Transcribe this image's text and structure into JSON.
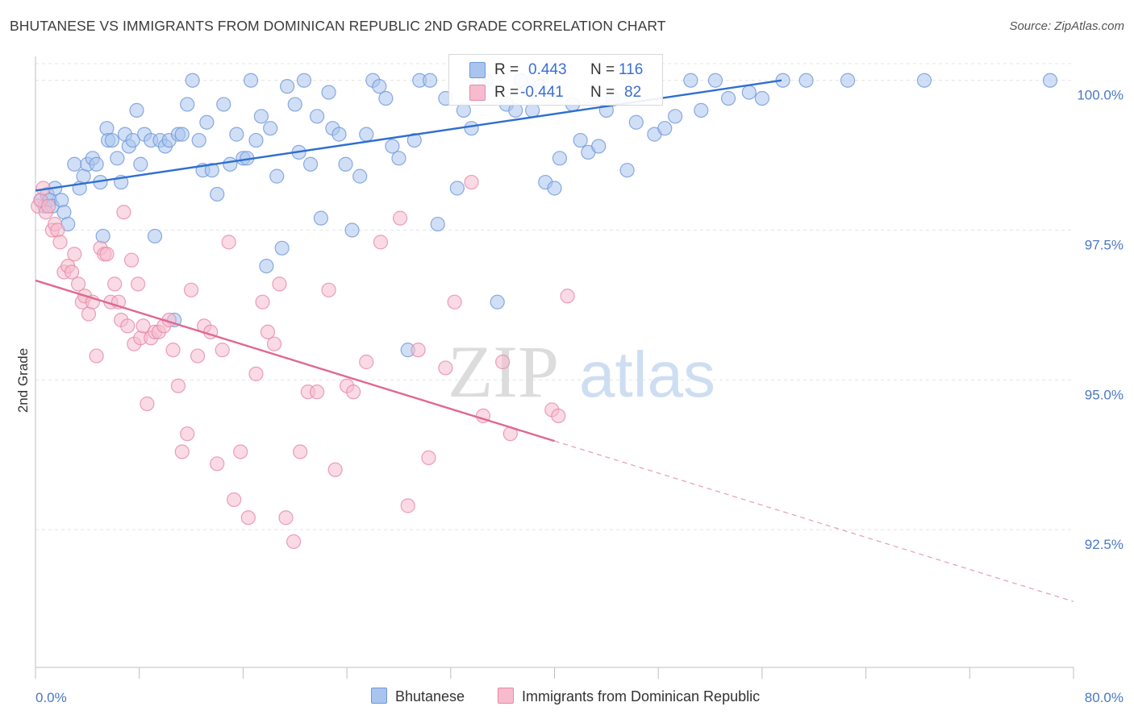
{
  "title": "BHUTANESE VS IMMIGRANTS FROM DOMINICAN REPUBLIC 2ND GRADE CORRELATION CHART",
  "source": "Source: ZipAtlas.com",
  "watermark": {
    "zip": "ZIP",
    "atlas": "atlas"
  },
  "legend": {
    "rows": [
      {
        "r_label": "R =",
        "r_value": "0.443",
        "n_label": "N =",
        "n_value": "116",
        "color": "#a9c4ef",
        "border": "#6f97d8"
      },
      {
        "r_label": "R =",
        "r_value": "-0.441",
        "n_label": "N =",
        "n_value": "82",
        "color": "#f6bccd",
        "border": "#e58aa7"
      }
    ]
  },
  "bottom_legend": [
    "Bhutanese",
    "Immigrants from Dominican Republic"
  ],
  "chart_data": {
    "type": "scatter",
    "title": "BHUTANESE VS IMMIGRANTS FROM DOMINICAN REPUBLIC 2ND GRADE CORRELATION CHART",
    "xlabel": "",
    "ylabel": "2nd Grade",
    "xlim": [
      0,
      80
    ],
    "ylim": [
      90.2,
      100.4
    ],
    "x_tick_labels": [
      "0.0%",
      "80.0%"
    ],
    "y_ticks": [
      92.5,
      95.0,
      97.5,
      100.0
    ],
    "y_tick_labels": [
      "92.5%",
      "95.0%",
      "97.5%",
      "100.0%"
    ],
    "grid": true,
    "legend_position": "top-center",
    "series": [
      {
        "name": "Bhutanese",
        "color": "#6f97d8",
        "fill": "#a9c4ef",
        "trend": {
          "x": [
            0,
            57.5
          ],
          "y": [
            98.16,
            100.0
          ],
          "style": "solid"
        },
        "x": [
          0.4,
          0.7,
          0.9,
          1.1,
          1.3,
          1.5,
          2.0,
          2.2,
          2.5,
          3.0,
          3.4,
          3.7,
          4.0,
          4.4,
          4.7,
          5.0,
          5.2,
          5.5,
          5.6,
          5.9,
          6.3,
          6.6,
          6.9,
          7.2,
          7.5,
          7.8,
          8.1,
          8.4,
          8.9,
          9.2,
          9.6,
          10.0,
          10.3,
          10.7,
          11.0,
          11.3,
          11.7,
          12.1,
          12.6,
          12.9,
          13.2,
          13.6,
          14.0,
          14.5,
          15.0,
          15.5,
          16.0,
          16.3,
          16.6,
          17.0,
          17.4,
          17.8,
          18.1,
          18.6,
          19.0,
          19.4,
          20.0,
          20.3,
          20.7,
          21.2,
          21.7,
          22.0,
          22.6,
          22.9,
          23.4,
          23.9,
          24.4,
          25.0,
          25.5,
          26.0,
          26.5,
          27.0,
          27.5,
          28.0,
          28.7,
          29.2,
          29.6,
          30.4,
          31.0,
          31.6,
          32.5,
          33.0,
          33.6,
          34.2,
          34.7,
          35.6,
          36.3,
          37.0,
          37.4,
          38.3,
          38.9,
          39.3,
          40.0,
          40.4,
          41.4,
          42.0,
          42.6,
          43.4,
          44.0,
          44.5,
          45.6,
          46.3,
          47.7,
          48.5,
          49.3,
          50.5,
          51.3,
          52.4,
          53.4,
          55.0,
          56.0,
          57.6,
          59.4,
          62.6,
          68.5,
          78.2
        ],
        "y": [
          98.0,
          97.9,
          98.1,
          98.0,
          97.9,
          98.2,
          98.0,
          97.8,
          97.6,
          98.6,
          98.2,
          98.4,
          98.6,
          98.7,
          98.6,
          98.3,
          97.4,
          99.2,
          99.0,
          99.0,
          98.7,
          98.3,
          99.1,
          98.9,
          99.0,
          99.5,
          98.6,
          99.1,
          99.0,
          97.4,
          99.0,
          98.9,
          99.0,
          96.0,
          99.1,
          99.1,
          99.6,
          100.0,
          99.0,
          98.5,
          99.3,
          98.5,
          98.1,
          99.6,
          98.6,
          99.1,
          98.7,
          98.7,
          100.0,
          99.0,
          99.4,
          96.9,
          99.2,
          98.4,
          97.2,
          99.9,
          99.6,
          98.8,
          100.0,
          98.6,
          99.4,
          97.7,
          99.8,
          99.2,
          99.1,
          98.6,
          97.5,
          98.4,
          99.1,
          100.0,
          99.9,
          99.7,
          98.9,
          98.7,
          95.5,
          99.0,
          100.0,
          100.0,
          97.6,
          99.7,
          98.2,
          99.5,
          99.2,
          100.0,
          100.0,
          96.3,
          99.6,
          99.5,
          100.0,
          99.5,
          99.9,
          98.3,
          98.2,
          98.7,
          99.6,
          99.0,
          98.8,
          98.9,
          99.5,
          99.7,
          98.5,
          99.3,
          99.1,
          99.2,
          99.4,
          100.0,
          99.5,
          100.0,
          99.7,
          99.8,
          99.7,
          100.0,
          100.0,
          100.0,
          100.0,
          100.0
        ]
      },
      {
        "name": "Immigrants from Dominican Republic",
        "color": "#e58aa7",
        "fill": "#f6bccd",
        "trend": {
          "x": [
            0,
            40
          ],
          "y": [
            96.66,
            93.98
          ],
          "style": "solid"
        },
        "trend_extension": {
          "x": [
            40,
            80
          ],
          "y": [
            93.98,
            91.3
          ],
          "style": "dashed"
        },
        "x": [
          0.2,
          0.4,
          0.6,
          0.8,
          1.0,
          1.3,
          1.5,
          1.7,
          1.9,
          2.2,
          2.5,
          2.8,
          3.0,
          3.3,
          3.6,
          3.8,
          4.1,
          4.4,
          4.7,
          5.0,
          5.3,
          5.5,
          5.8,
          6.1,
          6.4,
          6.6,
          6.8,
          7.1,
          7.4,
          7.6,
          7.9,
          8.1,
          8.3,
          8.6,
          8.9,
          9.2,
          9.5,
          9.9,
          10.3,
          10.6,
          11.0,
          11.3,
          11.7,
          12.0,
          12.5,
          13.0,
          13.5,
          14.0,
          14.4,
          14.9,
          15.3,
          15.8,
          16.4,
          17.0,
          17.5,
          17.9,
          18.4,
          18.8,
          19.3,
          19.9,
          20.4,
          21.0,
          21.7,
          22.6,
          23.1,
          24.0,
          24.5,
          25.5,
          26.6,
          28.1,
          28.7,
          29.5,
          30.3,
          31.6,
          32.3,
          33.6,
          34.5,
          36.0,
          36.6,
          39.8,
          40.3,
          41.0
        ],
        "y": [
          97.9,
          98.0,
          98.2,
          97.8,
          97.9,
          97.5,
          97.6,
          97.5,
          97.3,
          96.8,
          96.9,
          96.8,
          97.1,
          96.6,
          96.3,
          96.4,
          96.1,
          96.3,
          95.4,
          97.2,
          97.1,
          97.1,
          96.3,
          96.6,
          96.3,
          96.0,
          97.8,
          95.9,
          97.0,
          95.6,
          96.6,
          95.7,
          95.9,
          94.6,
          95.7,
          95.8,
          95.8,
          95.9,
          96.0,
          95.5,
          94.9,
          93.8,
          94.1,
          96.5,
          95.4,
          95.9,
          95.8,
          93.6,
          95.5,
          97.3,
          93.0,
          93.8,
          92.7,
          95.1,
          96.3,
          95.8,
          95.6,
          96.6,
          92.7,
          92.3,
          93.8,
          94.8,
          94.8,
          96.5,
          93.5,
          94.9,
          94.8,
          95.3,
          97.3,
          97.7,
          92.9,
          95.5,
          93.7,
          95.2,
          96.3,
          98.3,
          94.4,
          95.3,
          94.1,
          94.5,
          94.4,
          96.4
        ]
      }
    ]
  }
}
